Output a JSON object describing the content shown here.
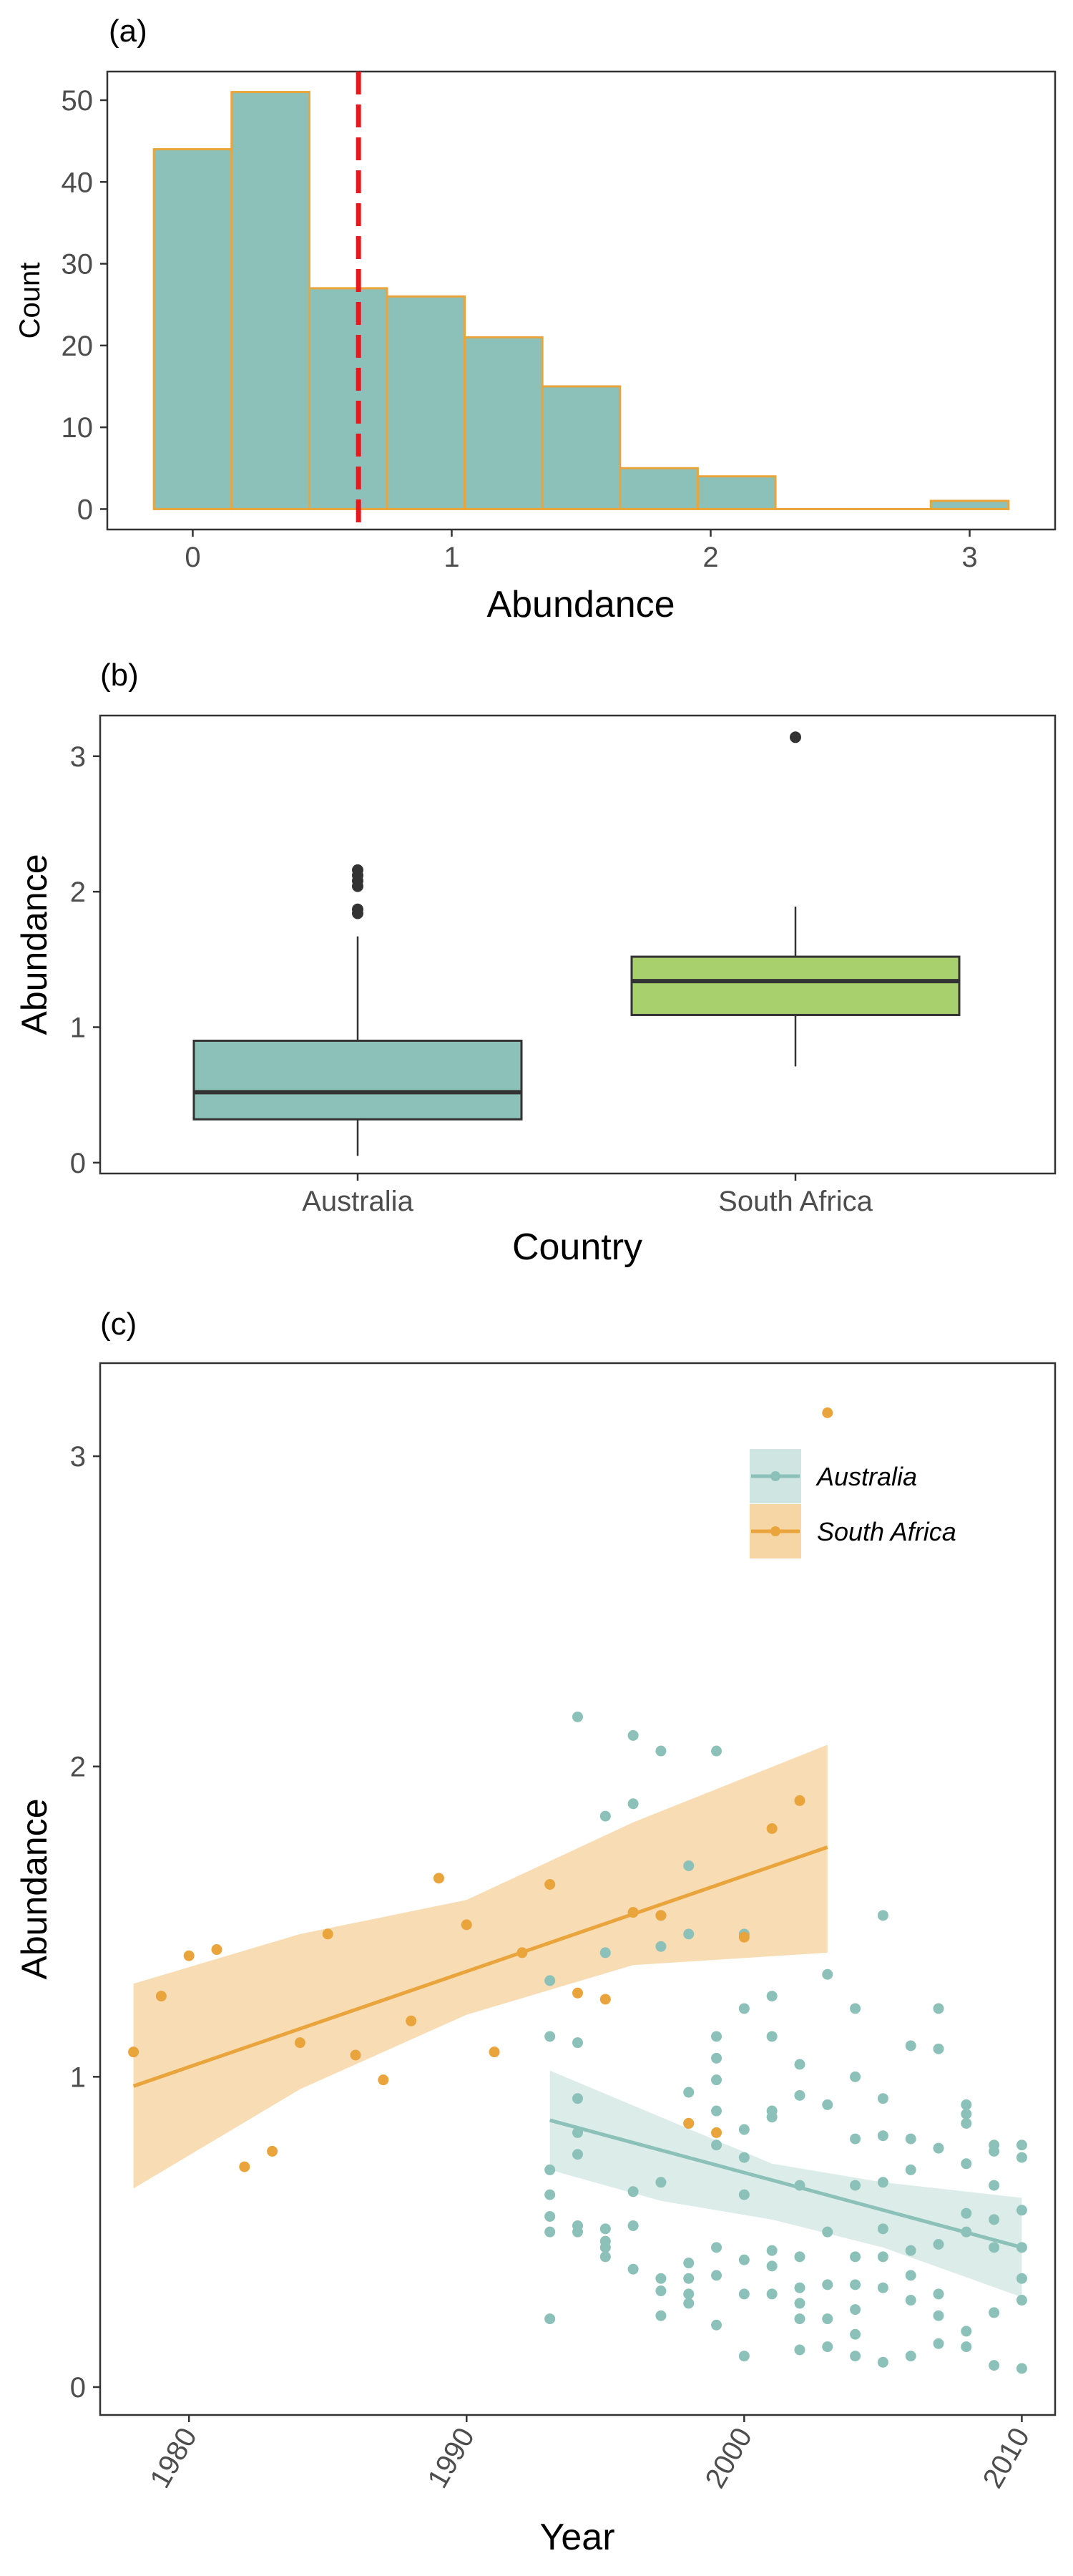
{
  "panels": {
    "a": {
      "tag": "(a)"
    },
    "b": {
      "tag": "(b)"
    },
    "c": {
      "tag": "(c)"
    }
  },
  "colors": {
    "australia": "#8cc1b9",
    "south_africa": "#e9a43c",
    "south_africa_box": "#a8d06d",
    "south_africa_band": "#f7d6a6",
    "australia_band": "#cfe5e1",
    "mean_line": "#e31a1c",
    "hist_fill": "#8cc1b9",
    "hist_border": "#e9a43c",
    "axis": "#333333"
  },
  "chart_data": [
    {
      "type": "bar",
      "title": "",
      "xlabel": "Abundance",
      "ylabel": "Count",
      "xlim": [
        -0.33,
        3.33
      ],
      "ylim": [
        -2.5,
        53.5
      ],
      "xticks": [
        "0",
        "1",
        "2",
        "3"
      ],
      "xtick_values": [
        0,
        1,
        2,
        3
      ],
      "yticks": [
        "0",
        "10",
        "20",
        "30",
        "40",
        "50"
      ],
      "ytick_values": [
        0,
        10,
        20,
        30,
        40,
        50
      ],
      "bins": [
        {
          "x0": -0.15,
          "x1": 0.15,
          "count": 44
        },
        {
          "x0": 0.15,
          "x1": 0.45,
          "count": 51
        },
        {
          "x0": 0.45,
          "x1": 0.75,
          "count": 27
        },
        {
          "x0": 0.75,
          "x1": 1.05,
          "count": 26
        },
        {
          "x0": 1.05,
          "x1": 1.35,
          "count": 21
        },
        {
          "x0": 1.35,
          "x1": 1.65,
          "count": 15
        },
        {
          "x0": 1.65,
          "x1": 1.95,
          "count": 5
        },
        {
          "x0": 1.95,
          "x1": 2.25,
          "count": 4
        },
        {
          "x0": 2.25,
          "x1": 2.55,
          "count": 0
        },
        {
          "x0": 2.55,
          "x1": 2.85,
          "count": 0
        },
        {
          "x0": 2.85,
          "x1": 3.15,
          "count": 1
        }
      ],
      "mean_line": 0.64,
      "grid": false
    },
    {
      "type": "box",
      "title": "",
      "xlabel": "Country",
      "ylabel": "Abundance",
      "ylim": [
        -0.08,
        3.3
      ],
      "yticks": [
        "0",
        "1",
        "2",
        "3"
      ],
      "ytick_values": [
        0,
        1,
        2,
        3
      ],
      "categories": [
        "Australia",
        "South Africa"
      ],
      "boxes": [
        {
          "name": "Australia",
          "q1": 0.32,
          "median": 0.52,
          "q3": 0.9,
          "whisker_low": 0.05,
          "whisker_high": 1.67,
          "outliers": [
            1.84,
            1.87,
            2.04,
            2.08,
            2.12,
            2.16
          ]
        },
        {
          "name": "South Africa",
          "q1": 1.09,
          "median": 1.34,
          "q3": 1.52,
          "whisker_low": 0.71,
          "whisker_high": 1.89,
          "outliers": [
            3.14
          ]
        }
      ],
      "grid": false
    },
    {
      "type": "scatter",
      "title": "",
      "xlabel": "Year",
      "ylabel": "Abundance",
      "xlim": [
        1976.8,
        2011.2
      ],
      "ylim": [
        -0.09,
        3.3
      ],
      "xticks": [
        "1980",
        "1990",
        "2000",
        "2010"
      ],
      "xtick_values": [
        1980,
        1990,
        2000,
        2010
      ],
      "yticks": [
        "0",
        "1",
        "2",
        "3"
      ],
      "ytick_values": [
        0,
        1,
        2,
        3
      ],
      "legend_position": "top-right",
      "series": [
        {
          "name": "Australia",
          "points": [
            [
              1993,
              0.22
            ],
            [
              1993,
              0.5
            ],
            [
              1993,
              0.55
            ],
            [
              1993,
              0.62
            ],
            [
              1993,
              0.7
            ],
            [
              1993,
              1.13
            ],
            [
              1993,
              1.31
            ],
            [
              1994,
              0.5
            ],
            [
              1994,
              0.52
            ],
            [
              1994,
              0.75
            ],
            [
              1994,
              0.82
            ],
            [
              1994,
              0.93
            ],
            [
              1994,
              1.11
            ],
            [
              1994,
              2.16
            ],
            [
              1995,
              0.42
            ],
            [
              1995,
              0.45
            ],
            [
              1995,
              0.47
            ],
            [
              1995,
              0.51
            ],
            [
              1995,
              1.4
            ],
            [
              1995,
              1.84
            ],
            [
              1996,
              0.38
            ],
            [
              1996,
              0.52
            ],
            [
              1996,
              0.63
            ],
            [
              1996,
              1.88
            ],
            [
              1996,
              2.1
            ],
            [
              1997,
              0.23
            ],
            [
              1997,
              0.31
            ],
            [
              1997,
              0.35
            ],
            [
              1997,
              0.66
            ],
            [
              1997,
              1.42
            ],
            [
              1997,
              1.52
            ],
            [
              1997,
              2.05
            ],
            [
              1998,
              0.27
            ],
            [
              1998,
              0.3
            ],
            [
              1998,
              0.35
            ],
            [
              1998,
              0.4
            ],
            [
              1998,
              0.85
            ],
            [
              1998,
              0.95
            ],
            [
              1998,
              1.46
            ],
            [
              1998,
              1.68
            ],
            [
              1999,
              0.2
            ],
            [
              1999,
              0.36
            ],
            [
              1999,
              0.45
            ],
            [
              1999,
              0.78
            ],
            [
              1999,
              0.89
            ],
            [
              1999,
              0.99
            ],
            [
              1999,
              1.06
            ],
            [
              1999,
              1.13
            ],
            [
              1999,
              2.05
            ],
            [
              2000,
              0.1
            ],
            [
              2000,
              0.3
            ],
            [
              2000,
              0.41
            ],
            [
              2000,
              0.62
            ],
            [
              2000,
              0.74
            ],
            [
              2000,
              0.83
            ],
            [
              2000,
              1.22
            ],
            [
              2000,
              1.46
            ],
            [
              2001,
              0.3
            ],
            [
              2001,
              0.39
            ],
            [
              2001,
              0.44
            ],
            [
              2001,
              0.87
            ],
            [
              2001,
              0.89
            ],
            [
              2001,
              1.13
            ],
            [
              2001,
              1.26
            ],
            [
              2002,
              0.12
            ],
            [
              2002,
              0.22
            ],
            [
              2002,
              0.27
            ],
            [
              2002,
              0.32
            ],
            [
              2002,
              0.42
            ],
            [
              2002,
              0.65
            ],
            [
              2002,
              0.94
            ],
            [
              2002,
              1.04
            ],
            [
              2003,
              0.13
            ],
            [
              2003,
              0.22
            ],
            [
              2003,
              0.33
            ],
            [
              2003,
              0.5
            ],
            [
              2003,
              0.91
            ],
            [
              2003,
              1.33
            ],
            [
              2004,
              0.1
            ],
            [
              2004,
              0.17
            ],
            [
              2004,
              0.25
            ],
            [
              2004,
              0.33
            ],
            [
              2004,
              0.42
            ],
            [
              2004,
              0.65
            ],
            [
              2004,
              0.8
            ],
            [
              2004,
              1.0
            ],
            [
              2004,
              1.22
            ],
            [
              2005,
              0.08
            ],
            [
              2005,
              0.32
            ],
            [
              2005,
              0.42
            ],
            [
              2005,
              0.51
            ],
            [
              2005,
              0.66
            ],
            [
              2005,
              0.81
            ],
            [
              2005,
              0.93
            ],
            [
              2005,
              1.52
            ],
            [
              2006,
              0.1
            ],
            [
              2006,
              0.28
            ],
            [
              2006,
              0.36
            ],
            [
              2006,
              0.44
            ],
            [
              2006,
              0.7
            ],
            [
              2006,
              0.8
            ],
            [
              2006,
              1.1
            ],
            [
              2007,
              0.14
            ],
            [
              2007,
              0.23
            ],
            [
              2007,
              0.3
            ],
            [
              2007,
              0.46
            ],
            [
              2007,
              0.77
            ],
            [
              2007,
              1.09
            ],
            [
              2007,
              1.22
            ],
            [
              2008,
              0.13
            ],
            [
              2008,
              0.18
            ],
            [
              2008,
              0.5
            ],
            [
              2008,
              0.56
            ],
            [
              2008,
              0.72
            ],
            [
              2008,
              0.85
            ],
            [
              2008,
              0.88
            ],
            [
              2008,
              0.91
            ],
            [
              2009,
              0.07
            ],
            [
              2009,
              0.24
            ],
            [
              2009,
              0.45
            ],
            [
              2009,
              0.54
            ],
            [
              2009,
              0.65
            ],
            [
              2009,
              0.76
            ],
            [
              2009,
              0.78
            ],
            [
              2010,
              0.06
            ],
            [
              2010,
              0.28
            ],
            [
              2010,
              0.35
            ],
            [
              2010,
              0.45
            ],
            [
              2010,
              0.57
            ],
            [
              2010,
              0.74
            ],
            [
              2010,
              0.78
            ]
          ],
          "trend": [
            [
              1993,
              0.86
            ],
            [
              2010,
              0.45
            ]
          ],
          "ci_band": [
            [
              1993,
              0.7,
              1.02
            ],
            [
              1997,
              0.6,
              0.87
            ],
            [
              2001,
              0.54,
              0.72
            ],
            [
              2005,
              0.45,
              0.66
            ],
            [
              2010,
              0.29,
              0.61
            ]
          ]
        },
        {
          "name": "South Africa",
          "points": [
            [
              1978,
              1.08
            ],
            [
              1979,
              1.26
            ],
            [
              1980,
              1.39
            ],
            [
              1981,
              1.41
            ],
            [
              1982,
              0.71
            ],
            [
              1983,
              0.76
            ],
            [
              1984,
              1.11
            ],
            [
              1985,
              1.46
            ],
            [
              1986,
              1.07
            ],
            [
              1987,
              0.99
            ],
            [
              1988,
              1.18
            ],
            [
              1989,
              1.64
            ],
            [
              1990,
              1.49
            ],
            [
              1991,
              1.08
            ],
            [
              1992,
              1.4
            ],
            [
              1993,
              1.62
            ],
            [
              1994,
              1.27
            ],
            [
              1995,
              1.25
            ],
            [
              1996,
              1.53
            ],
            [
              1997,
              1.52
            ],
            [
              1998,
              0.85
            ],
            [
              1999,
              0.82
            ],
            [
              2000,
              1.45
            ],
            [
              2001,
              1.8
            ],
            [
              2002,
              1.89
            ],
            [
              2003,
              3.14
            ]
          ],
          "trend": [
            [
              1978,
              0.97
            ],
            [
              2003,
              1.74
            ]
          ],
          "ci_band": [
            [
              1978,
              0.64,
              1.3
            ],
            [
              1984,
              0.96,
              1.46
            ],
            [
              1990,
              1.2,
              1.57
            ],
            [
              1996,
              1.36,
              1.82
            ],
            [
              2003,
              1.4,
              2.07
            ]
          ]
        }
      ],
      "grid": false
    }
  ]
}
